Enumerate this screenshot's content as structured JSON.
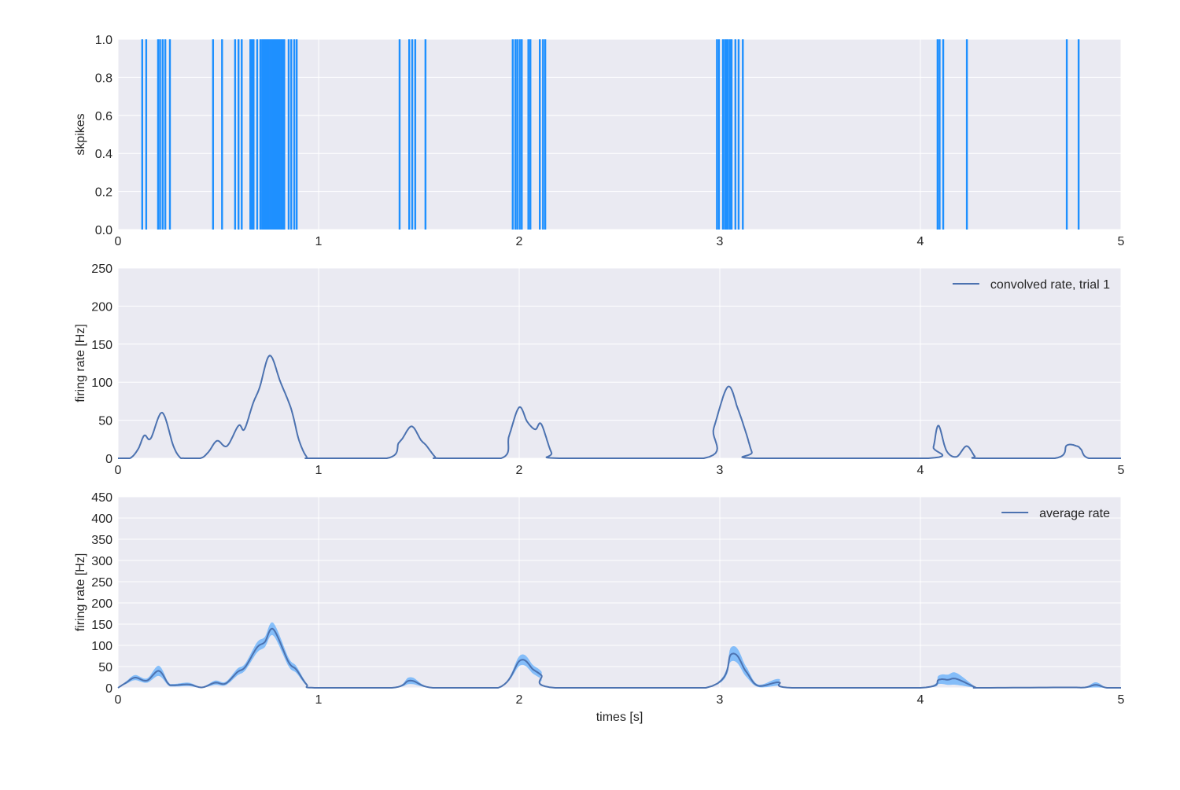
{
  "chart_data": [
    {
      "type": "bar",
      "subtype": "spike raster (vertical lines)",
      "ylabel": "skpikes",
      "xlim": [
        0,
        5
      ],
      "ylim": [
        0,
        1
      ],
      "xticks": [
        "0",
        "1",
        "2",
        "3",
        "4",
        "5"
      ],
      "yticks": [
        "0.0",
        "0.2",
        "0.4",
        "0.6",
        "0.8",
        "1.0"
      ],
      "grid": true,
      "color": "#1E90FF",
      "spike_times": [
        0.12,
        0.14,
        0.199,
        0.209,
        0.222,
        0.235,
        0.258,
        0.473,
        0.518,
        0.583,
        0.6,
        0.616,
        0.659,
        0.667,
        0.675,
        0.693,
        0.709,
        0.718,
        0.725,
        0.733,
        0.741,
        0.749,
        0.757,
        0.765,
        0.773,
        0.78,
        0.788,
        0.796,
        0.804,
        0.812,
        0.82,
        0.828,
        0.85,
        0.863,
        0.878,
        0.89,
        1.403,
        1.451,
        1.466,
        1.481,
        1.532,
        1.967,
        1.98,
        1.99,
        2.002,
        2.012,
        2.045,
        2.055,
        2.102,
        2.118,
        2.129,
        2.985,
        2.995,
        3.015,
        3.025,
        3.032,
        3.04,
        3.05,
        3.058,
        3.077,
        3.093,
        3.114,
        4.085,
        4.095,
        4.113,
        4.231,
        4.729,
        4.788
      ]
    },
    {
      "type": "line",
      "ylabel": "firing rate [Hz]",
      "xlim": [
        0,
        5
      ],
      "ylim": [
        0,
        250
      ],
      "xticks": [
        "0",
        "1",
        "2",
        "3",
        "4",
        "5"
      ],
      "yticks": [
        "0",
        "50",
        "100",
        "150",
        "200",
        "250"
      ],
      "grid": true,
      "legend_position": "top-right",
      "series": [
        {
          "name": "convolved rate, trial 1",
          "color": "#4C72B0",
          "x": [
            0,
            0.059,
            0.1,
            0.131,
            0.163,
            0.22,
            0.275,
            0.306,
            0.33,
            0.41,
            0.45,
            0.494,
            0.543,
            0.601,
            0.63,
            0.673,
            0.706,
            0.756,
            0.81,
            0.863,
            0.902,
            0.94,
            0.97,
            1.34,
            1.399,
            1.418,
            1.464,
            1.51,
            1.536,
            1.58,
            1.6,
            1.91,
            1.95,
            2.0,
            2.04,
            2.08,
            2.11,
            2.16,
            2.2,
            2.92,
            2.97,
            3.04,
            3.09,
            3.13,
            3.16,
            3.18,
            4.04,
            4.065,
            4.09,
            4.13,
            4.18,
            4.23,
            4.27,
            4.29,
            4.67,
            4.73,
            4.78,
            4.8,
            4.84,
            5
          ],
          "y": [
            0,
            0,
            12,
            30,
            26,
            60,
            17,
            2,
            0,
            0,
            8,
            23,
            16,
            43,
            38,
            72,
            93,
            135,
            100,
            65,
            24,
            2,
            0,
            0,
            20,
            26,
            42,
            24,
            17,
            2,
            0,
            0,
            30,
            67,
            48,
            38,
            45,
            8,
            0,
            0,
            40,
            94,
            65,
            34,
            8,
            0,
            0,
            15,
            43,
            10,
            2,
            16,
            3,
            0,
            0,
            17,
            16,
            12,
            0,
            0
          ]
        }
      ]
    },
    {
      "type": "area",
      "xlabel": "times [s]",
      "ylabel": "firing rate [Hz]",
      "xlim": [
        0,
        5
      ],
      "ylim": [
        0,
        450
      ],
      "xticks": [
        "0",
        "1",
        "2",
        "3",
        "4",
        "5"
      ],
      "yticks": [
        "0",
        "50",
        "100",
        "150",
        "200",
        "250",
        "300",
        "350",
        "400",
        "450"
      ],
      "grid": true,
      "legend_position": "top-right",
      "band_color": "#1E90FF",
      "series": [
        {
          "name": "average rate",
          "color": "#4C72B0",
          "x": [
            0,
            0.04,
            0.085,
            0.144,
            0.203,
            0.25,
            0.275,
            0.353,
            0.418,
            0.484,
            0.536,
            0.595,
            0.634,
            0.693,
            0.732,
            0.774,
            0.85,
            0.889,
            0.94,
            0.98,
            1.365,
            1.458,
            1.57,
            1.895,
            2.006,
            2.07,
            2.11,
            2.18,
            2.93,
            3.06,
            3.13,
            3.19,
            3.294,
            3.36,
            4.0,
            4.092,
            4.137,
            4.18,
            4.275,
            4.3,
            4.72,
            4.82,
            4.875,
            4.93,
            5
          ],
          "y": [
            0,
            12,
            24,
            17,
            40,
            10,
            6,
            8,
            1,
            12,
            10,
            37,
            49,
            95,
            108,
            138,
            61,
            43,
            8,
            0,
            0,
            17,
            0,
            0,
            65,
            43,
            30,
            0,
            0,
            80,
            39,
            5,
            13,
            0,
            0,
            19,
            19,
            21,
            1,
            0,
            1,
            1,
            7,
            0,
            0
          ],
          "error": [
            0,
            3,
            6,
            5,
            12,
            4,
            3,
            4,
            1,
            5,
            4,
            8,
            8,
            12,
            12,
            15,
            10,
            8,
            3,
            0,
            0,
            8,
            0,
            0,
            12,
            10,
            9,
            0,
            0,
            17,
            12,
            3,
            8,
            0,
            0,
            10,
            12,
            14,
            1,
            0,
            1,
            1,
            6,
            0,
            0
          ]
        }
      ]
    }
  ]
}
